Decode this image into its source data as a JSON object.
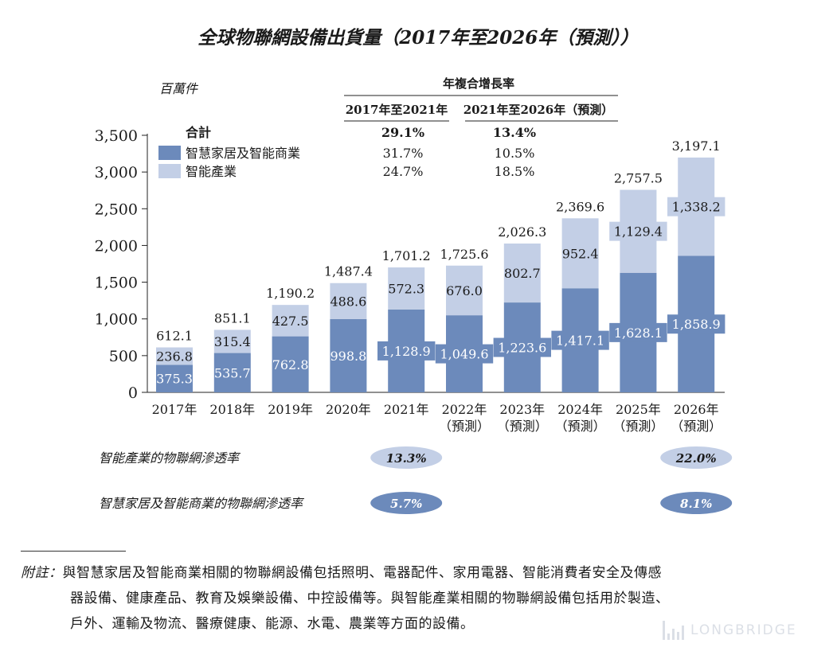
{
  "chart_data": {
    "type": "bar",
    "stacked": true,
    "title": "全球物聯網設備出貨量（2017年至2026年（預測））",
    "ylabel": "百萬件",
    "ylim": [
      0,
      3500
    ],
    "yticks": [
      "0",
      "500",
      "1,000",
      "1,500",
      "2,000",
      "2,500",
      "3,000",
      "3,500"
    ],
    "categories": [
      {
        "year": "2017年",
        "sub": ""
      },
      {
        "year": "2018年",
        "sub": ""
      },
      {
        "year": "2019年",
        "sub": ""
      },
      {
        "year": "2020年",
        "sub": ""
      },
      {
        "year": "2021年",
        "sub": ""
      },
      {
        "year": "2022年",
        "sub": "（預測）"
      },
      {
        "year": "2023年",
        "sub": "（預測）"
      },
      {
        "year": "2024年",
        "sub": "（預測）"
      },
      {
        "year": "2025年",
        "sub": "（預測）"
      },
      {
        "year": "2026年",
        "sub": "（預測）"
      }
    ],
    "series": [
      {
        "name": "智慧家居及智能商業",
        "color": "#6c8abb",
        "values": [
          375.3,
          535.7,
          762.8,
          998.8,
          1128.9,
          1049.6,
          1223.6,
          1417.1,
          1628.1,
          1858.9
        ],
        "labels": [
          "375.3",
          "535.7",
          "762.8",
          "998.8",
          "1,128.9",
          "1,049.6",
          "1,223.6",
          "1,417.1",
          "1,628.1",
          "1,858.9"
        ]
      },
      {
        "name": "智能產業",
        "color": "#c3cfe6",
        "values": [
          236.8,
          315.4,
          427.5,
          488.6,
          572.3,
          676.0,
          802.7,
          952.4,
          1129.4,
          1338.2
        ],
        "labels": [
          "236.8",
          "315.4",
          "427.5",
          "488.6",
          "572.3",
          "676.0",
          "802.7",
          "952.4",
          "1,129.4",
          "1,338.2"
        ]
      }
    ],
    "totals": [
      612.1,
      851.1,
      1190.2,
      1487.4,
      1701.2,
      1725.6,
      2026.3,
      2369.6,
      2757.5,
      3197.1
    ],
    "total_labels": [
      "612.1",
      "851.1",
      "1,190.2",
      "1,487.4",
      "1,701.2",
      "1,725.6",
      "2,026.3",
      "2,369.6",
      "2,757.5",
      "3,197.1"
    ],
    "cagr": {
      "header": "年複合增長率",
      "col1": "2017年至2021年",
      "col2": "2021年至2026年（預測）",
      "rows": [
        {
          "label": "合計",
          "v1": "29.1%",
          "v2": "13.4%"
        },
        {
          "label": "智慧家居及智能商業",
          "v1": "31.7%",
          "v2": "10.5%"
        },
        {
          "label": "智能產業",
          "v1": "24.7%",
          "v2": "18.5%"
        }
      ]
    },
    "penetration": [
      {
        "label": "智能產業的物聯網滲透率",
        "v2021": "13.3%",
        "v2026": "22.0%",
        "color": "#c3cfe6",
        "text_color": "#1a1a1a"
      },
      {
        "label": "智慧家居及智能商業的物聯網滲透率",
        "v2021": "5.7%",
        "v2026": "8.1%",
        "color": "#6c8abb",
        "text_color": "#ffffff"
      }
    ]
  },
  "note": {
    "prefix": "附註：",
    "line1": "與智慧家居及智能商業相關的物聯網設備包括照明、電器配件、家用電器、智能消費者安全及傳感",
    "line2": "器設備、健康產品、教育及娛樂設備、中控設備等。與智能產業相關的物聯網設備包括用於製造、",
    "line3": "戶外、運輸及物流、醫療健康、能源、水電、農業等方面的設備。"
  },
  "watermark": "LONGBRIDGE"
}
